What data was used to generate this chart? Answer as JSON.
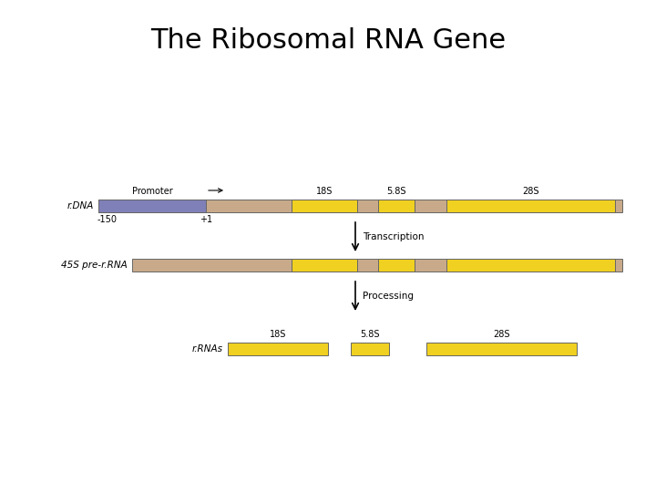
{
  "title": "The Ribosomal RNA Gene",
  "title_fontsize": 22,
  "title_font": "sans-serif",
  "bg_color": "#ffffff",
  "colors": {
    "purple": "#8080b8",
    "tan": "#c8aa8a",
    "yellow": "#f0d020",
    "outline": "#666666"
  },
  "rdna_label": "r.DNA",
  "minus150_label": "-150",
  "plus1_label": "+1",
  "promoter_label": "Promoter",
  "label_18s": "18S",
  "label_58s": "5.8S",
  "label_28s": "28S",
  "transcription_label": "Transcription",
  "processing_label": "Processing",
  "pre_rrna_label": "45S pre-r.RNA",
  "rrnas_label": "r.RNAs",
  "label_18s_r": "18S",
  "label_58s_r": "5.8S",
  "label_28s_r": "28S"
}
